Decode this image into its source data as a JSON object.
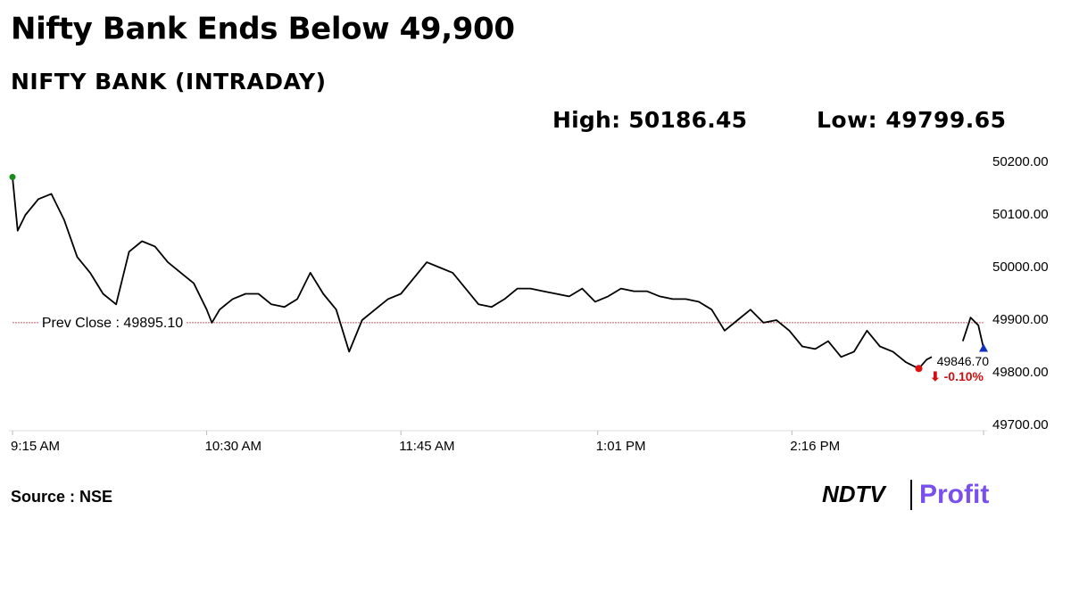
{
  "chart_data": {
    "type": "line",
    "title": "Nifty Bank Ends Below 49,900",
    "subtitle": "NIFTY BANK (INTRADAY)",
    "high_label": "High: 50186.45",
    "low_label": "Low: 49799.65",
    "source": "Source : NSE",
    "brand": [
      "NDTV",
      "Profit"
    ],
    "prev_close": {
      "value": 49895.1,
      "label": "Prev Close : 49895.10"
    },
    "last_label": "49846.70",
    "change_label": "⬇ -0.10%",
    "x": [
      555,
      557,
      560,
      565,
      570,
      575,
      580,
      585,
      590,
      595,
      600,
      605,
      610,
      615,
      620,
      625,
      630,
      632,
      635,
      640,
      645,
      650,
      655,
      660,
      665,
      670,
      675,
      680,
      685,
      690,
      695,
      700,
      705,
      710,
      715,
      720,
      725,
      730,
      735,
      740,
      745,
      750,
      755,
      760,
      765,
      770,
      775,
      780,
      785,
      790,
      795,
      800,
      805,
      810,
      815,
      820,
      825,
      830,
      835,
      840,
      845,
      850,
      855,
      860,
      865,
      870,
      875,
      880,
      885,
      890,
      895,
      900,
      905,
      908,
      910,
      915,
      922,
      925,
      928,
      930
    ],
    "series": [
      {
        "name": "NIFTY BANK",
        "color": "#000000",
        "values": [
          50172,
          50070,
          50100,
          50130,
          50140,
          50090,
          50020,
          49990,
          49950,
          49930,
          50030,
          50050,
          50040,
          50010,
          49990,
          49970,
          49920,
          49895,
          49920,
          49940,
          49950,
          49950,
          49930,
          49925,
          49940,
          49990,
          49950,
          49920,
          49840,
          49900,
          49920,
          49940,
          49950,
          49980,
          50010,
          50000,
          49990,
          49960,
          49930,
          49925,
          49940,
          49960,
          49960,
          49955,
          49950,
          49945,
          49960,
          49935,
          49945,
          49960,
          49955,
          49955,
          49945,
          49940,
          49940,
          49935,
          49920,
          49880,
          49900,
          49920,
          49895,
          49900,
          49880,
          49850,
          49845,
          49860,
          49830,
          49840,
          49880,
          49850,
          49840,
          49820,
          49808,
          49825,
          49830,
          null,
          49860,
          49905,
          49890,
          49846.7
        ]
      }
    ],
    "xlim": [
      555,
      930
    ],
    "xticks": [
      {
        "value": 555,
        "label": "9:15 AM"
      },
      {
        "value": 630,
        "label": "10:30 AM"
      },
      {
        "value": 705,
        "label": "11:45 AM"
      },
      {
        "value": 781,
        "label": "1:01 PM"
      },
      {
        "value": 856,
        "label": "2:16 PM"
      }
    ],
    "ylim": [
      49700,
      50200
    ],
    "yticks": [
      {
        "value": 50200,
        "label": "50200.00"
      },
      {
        "value": 50100,
        "label": "50100.00"
      },
      {
        "value": 50000,
        "label": "50000.00"
      },
      {
        "value": 49900,
        "label": "49900.00"
      },
      {
        "value": 49800,
        "label": "49800.00"
      },
      {
        "value": 49700,
        "label": "49700.00"
      }
    ]
  }
}
